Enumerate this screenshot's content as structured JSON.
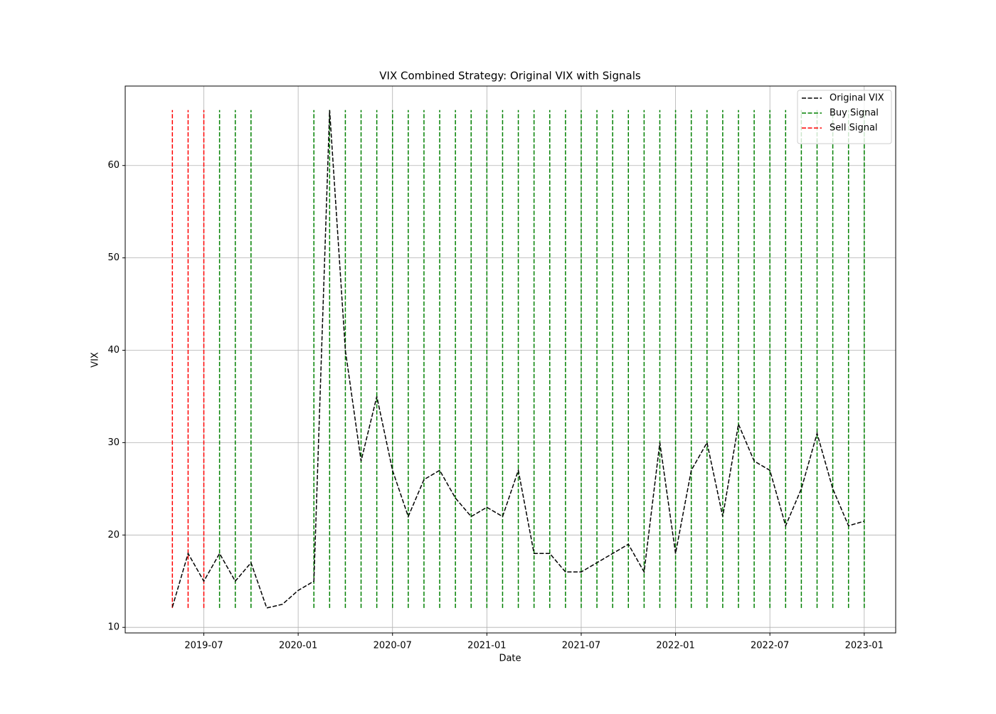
{
  "chart_data": {
    "type": "line",
    "title": "VIX Combined Strategy: Original VIX with Signals",
    "x_label": "Date",
    "y_label": "VIX",
    "x": [
      "2019-05",
      "2019-06",
      "2019-07",
      "2019-08",
      "2019-09",
      "2019-10",
      "2019-11",
      "2019-12",
      "2020-01",
      "2020-02",
      "2020-03",
      "2020-04",
      "2020-05",
      "2020-06",
      "2020-07",
      "2020-08",
      "2020-09",
      "2020-10",
      "2020-11",
      "2020-12",
      "2021-01",
      "2021-02",
      "2021-03",
      "2021-04",
      "2021-05",
      "2021-06",
      "2021-07",
      "2021-08",
      "2021-09",
      "2021-10",
      "2021-11",
      "2021-12",
      "2022-01",
      "2022-02",
      "2022-03",
      "2022-04",
      "2022-05",
      "2022-06",
      "2022-07",
      "2022-08",
      "2022-09",
      "2022-10",
      "2022-11",
      "2022-12",
      "2023-01"
    ],
    "series": [
      {
        "name": "Original VIX",
        "color": "#000000",
        "values": [
          12.2,
          18,
          15,
          18,
          15,
          17,
          12.1,
          12.5,
          14,
          15,
          66,
          40,
          28,
          35,
          27,
          22,
          26,
          27,
          24,
          22,
          23,
          22,
          27,
          18,
          18,
          16,
          16,
          17,
          18,
          19,
          16,
          30,
          18,
          27,
          30,
          22,
          32,
          28,
          27,
          21,
          25,
          31,
          25,
          21,
          21.5
        ]
      }
    ],
    "signals": [
      {
        "name": "Buy Signal",
        "color": "#008000",
        "x": [
          "2019-08",
          "2019-09",
          "2019-10",
          "2020-02",
          "2020-03",
          "2020-04",
          "2020-05",
          "2020-06",
          "2020-07",
          "2020-08",
          "2020-09",
          "2020-10",
          "2020-11",
          "2020-12",
          "2021-01",
          "2021-02",
          "2021-03",
          "2021-04",
          "2021-05",
          "2021-06",
          "2021-07",
          "2021-08",
          "2021-09",
          "2021-10",
          "2021-11",
          "2021-12",
          "2022-01",
          "2022-02",
          "2022-03",
          "2022-04",
          "2022-05",
          "2022-06",
          "2022-07",
          "2022-08",
          "2022-09",
          "2022-10",
          "2022-11",
          "2022-12",
          "2023-01"
        ]
      },
      {
        "name": "Sell Signal",
        "color": "#ff0000",
        "x": [
          "2019-05",
          "2019-06",
          "2019-07"
        ]
      }
    ],
    "xlim": [
      "2019-02",
      "2023-03"
    ],
    "xticks": [
      "2019-07",
      "2020-01",
      "2020-07",
      "2021-01",
      "2021-07",
      "2022-01",
      "2022-07",
      "2023-01"
    ],
    "ylim": [
      9.4,
      68.6
    ],
    "yticks": [
      10,
      20,
      30,
      40,
      50,
      60
    ],
    "grid": true,
    "legend": "upper right"
  }
}
